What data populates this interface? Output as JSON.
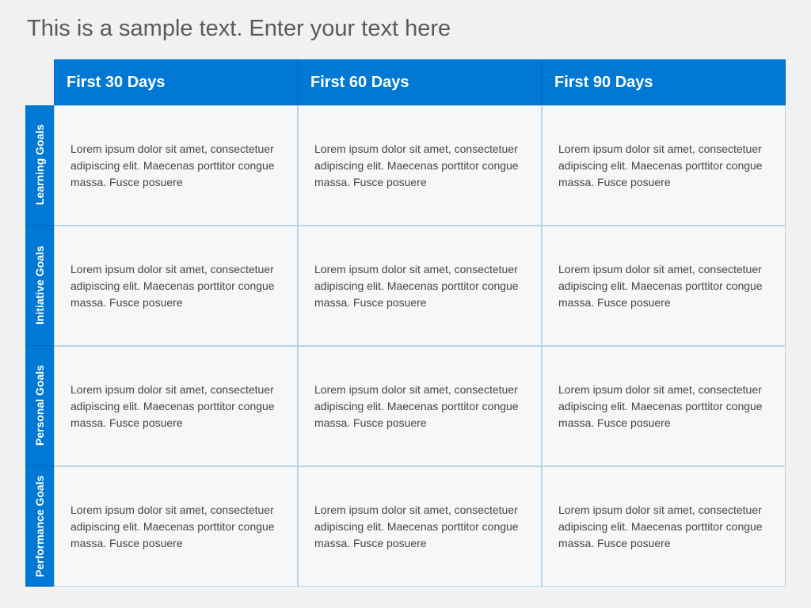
{
  "title": "This is a sample text. Enter your text here",
  "colors": {
    "header_bg": "#0078d4",
    "header_text": "#ffffff",
    "cell_bg": "#f7f7f7",
    "cell_border": "#b8d4e8",
    "cell_text": "#464646",
    "page_bg": "#f1f1f1",
    "title_text": "#5a5a5a"
  },
  "table": {
    "type": "table",
    "columns": [
      "First 30 Days",
      "First 60 Days",
      "First 90 Days"
    ],
    "rows": [
      "Learning Goals",
      "Initiative Goals",
      "Personal Goals",
      "Performance Goals"
    ],
    "cells": [
      [
        "Lorem ipsum dolor sit amet, consectetuer adipiscing elit. Maecenas porttitor congue massa. Fusce posuere",
        "Lorem ipsum dolor sit amet, consectetuer adipiscing elit. Maecenas porttitor congue massa. Fusce posuere",
        "Lorem ipsum dolor sit amet, consectetuer adipiscing elit. Maecenas porttitor congue massa. Fusce posuere"
      ],
      [
        "Lorem ipsum dolor sit amet, consectetuer adipiscing elit. Maecenas porttitor congue massa. Fusce posuere",
        "Lorem ipsum dolor sit amet, consectetuer adipiscing elit. Maecenas porttitor congue massa. Fusce posuere",
        "Lorem ipsum dolor sit amet, consectetuer adipiscing elit. Maecenas porttitor congue massa. Fusce posuere"
      ],
      [
        "Lorem ipsum dolor sit amet, consectetuer adipiscing elit. Maecenas porttitor congue massa. Fusce posuere",
        "Lorem ipsum dolor sit amet, consectetuer adipiscing elit. Maecenas porttitor congue massa. Fusce posuere",
        "Lorem ipsum dolor sit amet, consectetuer adipiscing elit. Maecenas porttitor congue massa. Fusce posuere"
      ],
      [
        "Lorem ipsum dolor sit amet, consectetuer adipiscing elit. Maecenas porttitor congue massa. Fusce posuere",
        "Lorem ipsum dolor sit amet, consectetuer adipiscing elit. Maecenas porttitor congue massa. Fusce posuere",
        "Lorem ipsum dolor sit amet, consectetuer adipiscing elit. Maecenas porttitor congue massa. Fusce posuere"
      ]
    ],
    "col_header_fontsize": 20,
    "row_header_fontsize": 14,
    "cell_fontsize": 14
  }
}
